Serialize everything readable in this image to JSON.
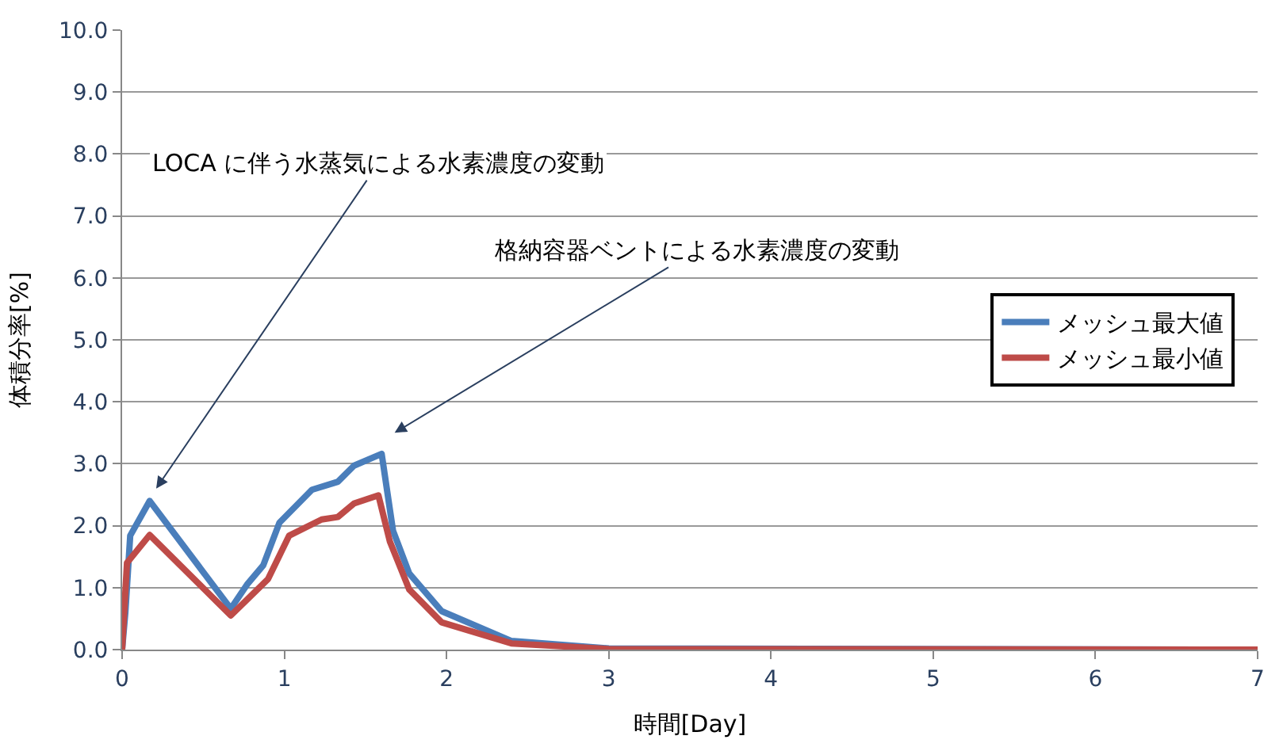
{
  "chart_data": {
    "type": "line",
    "xlabel": "時間[Day]",
    "ylabel": "体積分率[%]",
    "xlim": [
      0,
      7
    ],
    "xticks": [
      0,
      1,
      2,
      3,
      4,
      5,
      6,
      7
    ],
    "ylim": [
      0,
      10
    ],
    "yticks": [
      {
        "value": 0,
        "label": "0.0"
      },
      {
        "value": 1,
        "label": "1.0"
      },
      {
        "value": 2,
        "label": "2.0"
      },
      {
        "value": 3,
        "label": "3.0"
      },
      {
        "value": 4,
        "label": "4.0"
      },
      {
        "value": 5,
        "label": "5.0"
      },
      {
        "value": 6,
        "label": "6.0"
      },
      {
        "value": 7,
        "label": "7.0"
      },
      {
        "value": 8,
        "label": "8.0"
      },
      {
        "value": 9,
        "label": "9.0"
      },
      {
        "value": 10,
        "label": "10.0"
      }
    ],
    "grid": "y",
    "legend": "right",
    "marker": "none",
    "line_style": "solid",
    "series": [
      {
        "name": "メッシュ最大値",
        "color": "#4a7ebb",
        "x": [
          0,
          0.02,
          0.05,
          0.17,
          0.67,
          0.77,
          0.87,
          0.97,
          1.17,
          1.33,
          1.43,
          1.6,
          1.67,
          1.77,
          1.97,
          2.4,
          3,
          7
        ],
        "values": [
          0,
          0.6,
          1.84,
          2.4,
          0.66,
          1.05,
          1.36,
          2.05,
          2.58,
          2.71,
          2.97,
          3.16,
          1.92,
          1.23,
          0.62,
          0.14,
          0.02,
          0
        ]
      },
      {
        "name": "メッシュ最小値",
        "color": "#be4b48",
        "x": [
          0,
          0.03,
          0.17,
          0.67,
          0.9,
          1.03,
          1.23,
          1.33,
          1.43,
          1.58,
          1.65,
          1.77,
          1.97,
          2.4,
          3,
          7
        ],
        "values": [
          0,
          1.4,
          1.85,
          0.55,
          1.14,
          1.84,
          2.1,
          2.14,
          2.36,
          2.49,
          1.75,
          0.97,
          0.44,
          0.1,
          0.01,
          0
        ]
      }
    ],
    "annotations": [
      "LOCA に伴う水蒸気による水素濃度の変動",
      "格納容器ベントによる水素濃度の変動"
    ]
  }
}
